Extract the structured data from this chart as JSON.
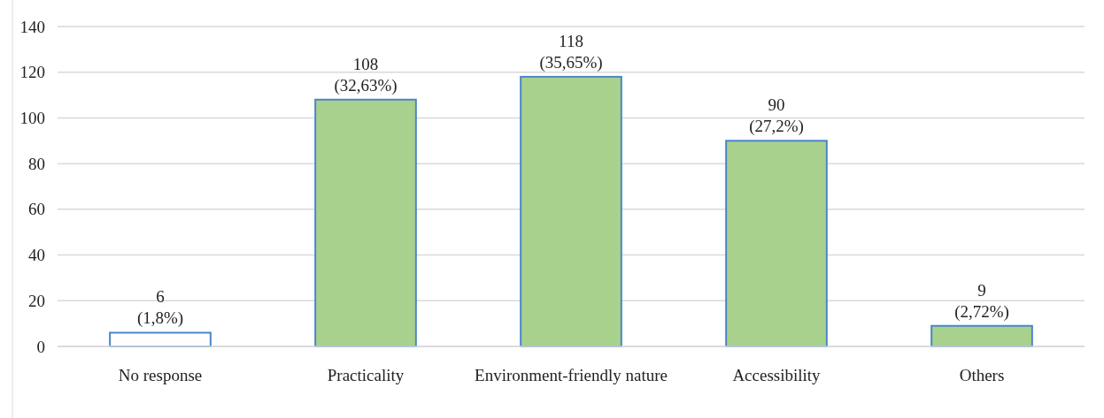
{
  "chart_data": {
    "type": "bar",
    "categories": [
      "No response",
      "Practicality",
      "Environment-friendly nature",
      "Accessibility",
      "Others"
    ],
    "values": [
      6,
      108,
      118,
      90,
      9
    ],
    "colors": [
      "#ffffff",
      "#a9d18e",
      "#a9d18e",
      "#a9d18e",
      "#a9d18e"
    ],
    "value_labels": [
      "6\n(1,8%)",
      "108\n(32,63%)",
      "118\n(35,65%)",
      "90\n(27,2%)",
      "9\n(2,72%)"
    ],
    "ylim": [
      0,
      140
    ],
    "yticks": [
      0,
      20,
      40,
      60,
      80,
      100,
      120,
      140
    ],
    "grid": "y"
  }
}
